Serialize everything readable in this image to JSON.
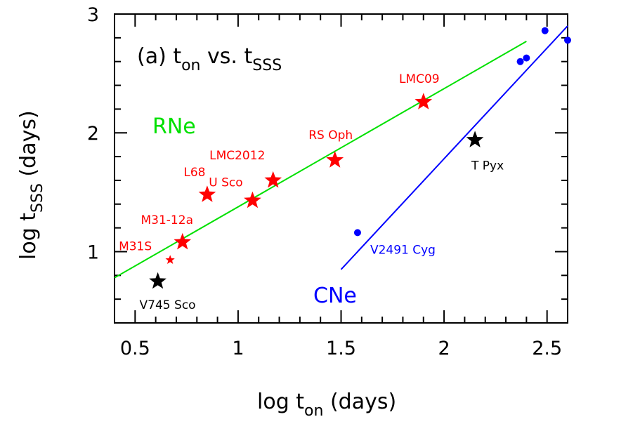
{
  "chart_data": {
    "type": "scatter",
    "title": "",
    "panel_label": {
      "prefix": "(a) t",
      "on_sub": "on",
      "mid": " vs. t",
      "sss_sub": "SSS"
    },
    "xlabel": {
      "prefix": "log t",
      "sub": "on",
      "suffix": " (days)"
    },
    "ylabel": {
      "prefix": "log t",
      "sub": "SSS",
      "suffix": " (days)"
    },
    "xlim": [
      0.4,
      2.6
    ],
    "ylim": [
      0.4,
      3.0
    ],
    "x_ticks": [
      0.5,
      1,
      1.5,
      2,
      2.5
    ],
    "x_tick_labels": [
      "0.5",
      "1",
      "1.5",
      "2",
      "2.5"
    ],
    "y_ticks": [
      1,
      2,
      3
    ],
    "y_tick_labels": [
      "1",
      "2",
      "3"
    ],
    "group_labels": {
      "rne": "RNe",
      "cne": "CNe"
    },
    "colors": {
      "rne": "#ff0000",
      "cne": "#0000ff",
      "fit_rne": "#00e000",
      "fit_cne": "#0000ff",
      "other": "#000000"
    },
    "lines": [
      {
        "group": "RNe fit",
        "x": [
          0.4,
          2.4
        ],
        "y": [
          0.78,
          2.77
        ]
      },
      {
        "group": "CNe fit",
        "x": [
          1.5,
          2.6
        ],
        "y": [
          0.85,
          2.9
        ]
      }
    ],
    "stars": [
      {
        "name": "M31S",
        "x": 0.67,
        "y": 0.93,
        "group": "RNe",
        "small": true
      },
      {
        "name": "M31-12a",
        "x": 0.73,
        "y": 1.08,
        "group": "RNe"
      },
      {
        "name": "L68",
        "x": 0.85,
        "y": 1.48,
        "group": "RNe"
      },
      {
        "name": "U Sco",
        "x": 1.07,
        "y": 1.43,
        "group": "RNe"
      },
      {
        "name": "LMC2012",
        "x": 1.17,
        "y": 1.6,
        "group": "RNe"
      },
      {
        "name": "RS Oph",
        "x": 1.47,
        "y": 1.77,
        "group": "RNe"
      },
      {
        "name": "LMC09",
        "x": 1.9,
        "y": 2.26,
        "group": "RNe"
      },
      {
        "name": "V745 Sco",
        "x": 0.61,
        "y": 0.75,
        "group": "other"
      },
      {
        "name": "T Pyx",
        "x": 2.15,
        "y": 1.94,
        "group": "other"
      }
    ],
    "dots": [
      {
        "name": "V2491 Cyg",
        "x": 1.58,
        "y": 1.16
      },
      {
        "name": "",
        "x": 2.37,
        "y": 2.6
      },
      {
        "name": "",
        "x": 2.4,
        "y": 2.63
      },
      {
        "name": "",
        "x": 2.49,
        "y": 2.86
      },
      {
        "name": "",
        "x": 2.6,
        "y": 2.78
      }
    ]
  }
}
